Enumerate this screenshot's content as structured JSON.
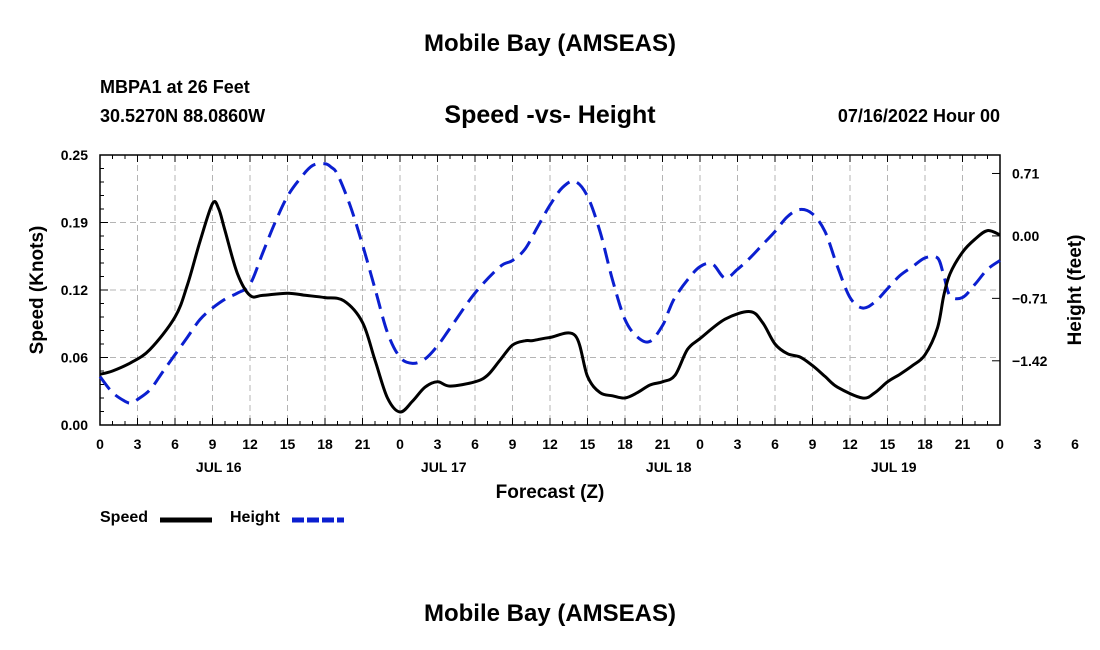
{
  "chart_data": {
    "type": "line",
    "title": "Mobile Bay (AMSEAS)",
    "footer_title": "Mobile Bay (AMSEAS)",
    "station": "MBPA1 at 26 Feet",
    "coordinates": "30.5270N  88.0860W",
    "subtitle": "Speed -vs- Height",
    "date_label": "07/16/2022 Hour 00",
    "xlabel": "Forecast (Z)",
    "ylabel_left": "Speed (Knots)",
    "ylabel_right": "Height (feet)",
    "x_range_hours": [
      0,
      72
    ],
    "hour_ticks": [
      "0",
      "3",
      "6",
      "9",
      "12",
      "15",
      "18",
      "21",
      "0",
      "3",
      "6",
      "9",
      "12",
      "15",
      "18",
      "21",
      "0",
      "3",
      "6",
      "9",
      "12",
      "15",
      "18",
      "21",
      "0",
      "3",
      "6",
      "9",
      "12",
      "15",
      "18",
      "21",
      "0"
    ],
    "day_labels": [
      {
        "label": "JUL 16",
        "hour": 9.5
      },
      {
        "label": "JUL 17",
        "hour": 27.5
      },
      {
        "label": "JUL 18",
        "hour": 45.5
      },
      {
        "label": "JUL 19",
        "hour": 63.5
      }
    ],
    "ylim_left": [
      0,
      0.25
    ],
    "yticks_left": [
      "0.25",
      "0.19",
      "0.12",
      "0.06",
      "0.00"
    ],
    "yticks_left_values": [
      0.25,
      0.1875,
      0.125,
      0.0625,
      0
    ],
    "ylim_right": [
      -2.15,
      0.92
    ],
    "yticks_right": [
      "0.71",
      "0.00",
      "−0.71",
      "−1.42"
    ],
    "yticks_right_values": [
      0.71,
      0,
      -0.71,
      -1.42
    ],
    "colors": {
      "speed": "#000000",
      "height": "#0b1fd0",
      "grid": "#b4b4b4"
    },
    "legend": [
      "Speed",
      "Height"
    ],
    "series": [
      {
        "name": "Speed",
        "color": "#000000",
        "dash": "solid",
        "x": [
          0,
          1,
          2.5,
          4,
          6,
          7,
          8,
          9,
          9.5,
          10,
          11,
          12,
          13,
          15,
          16.5,
          18,
          19.5,
          21,
          22,
          23,
          24,
          25,
          26,
          27,
          28,
          30,
          31,
          32,
          33,
          34,
          34.5,
          35,
          36,
          38,
          39,
          40,
          41,
          42,
          43,
          44,
          45,
          46,
          47,
          48,
          50,
          52,
          53,
          54,
          55,
          56,
          57,
          58,
          59,
          61,
          62,
          63,
          64,
          65,
          66,
          67,
          67.5,
          68,
          69,
          70,
          71,
          72
        ],
        "values": [
          0.047,
          0.05,
          0.058,
          0.07,
          0.1,
          0.13,
          0.17,
          0.205,
          0.2,
          0.18,
          0.14,
          0.12,
          0.12,
          0.122,
          0.12,
          0.118,
          0.115,
          0.095,
          0.06,
          0.025,
          0.012,
          0.022,
          0.035,
          0.04,
          0.036,
          0.04,
          0.046,
          0.06,
          0.074,
          0.078,
          0.078,
          0.079,
          0.081,
          0.083,
          0.045,
          0.03,
          0.027,
          0.025,
          0.03,
          0.037,
          0.04,
          0.046,
          0.07,
          0.08,
          0.098,
          0.105,
          0.095,
          0.075,
          0.066,
          0.063,
          0.055,
          0.045,
          0.035,
          0.025,
          0.03,
          0.04,
          0.047,
          0.055,
          0.065,
          0.09,
          0.12,
          0.14,
          0.16,
          0.172,
          0.18,
          0.176
        ]
      },
      {
        "name": "Height",
        "color": "#0b1fd0",
        "dash": "dashed",
        "x": [
          0,
          1,
          2,
          2.5,
          3,
          4,
          5,
          6,
          7,
          8,
          9,
          10,
          11,
          12,
          13,
          14,
          15,
          16,
          17,
          18,
          18.5,
          19,
          20,
          21,
          22,
          23,
          24,
          25,
          26,
          27,
          28,
          30,
          32,
          33,
          34,
          35,
          36,
          37,
          38,
          39,
          40,
          41,
          42,
          43,
          44,
          45,
          45.5,
          46,
          47,
          48,
          49,
          50,
          51,
          52,
          53,
          54,
          55,
          56,
          57,
          58,
          59,
          60,
          61,
          62,
          63,
          64,
          65,
          66,
          67,
          67.5,
          68,
          69,
          70,
          71,
          72
        ],
        "values": [
          -1.6,
          -1.78,
          -1.88,
          -1.9,
          -1.86,
          -1.75,
          -1.55,
          -1.35,
          -1.15,
          -0.95,
          -0.82,
          -0.72,
          -0.65,
          -0.55,
          -0.2,
          0.15,
          0.45,
          0.65,
          0.8,
          0.82,
          0.78,
          0.7,
          0.35,
          -0.1,
          -0.6,
          -1.1,
          -1.38,
          -1.45,
          -1.4,
          -1.25,
          -1.05,
          -0.65,
          -0.35,
          -0.28,
          -0.15,
          0.1,
          0.35,
          0.55,
          0.62,
          0.45,
          0.05,
          -0.5,
          -0.95,
          -1.15,
          -1.2,
          -1.02,
          -0.85,
          -0.7,
          -0.5,
          -0.35,
          -0.32,
          -0.48,
          -0.38,
          -0.25,
          -0.1,
          0.05,
          0.22,
          0.3,
          0.25,
          0.05,
          -0.35,
          -0.7,
          -0.82,
          -0.75,
          -0.6,
          -0.45,
          -0.35,
          -0.25,
          -0.25,
          -0.45,
          -0.68,
          -0.7,
          -0.55,
          -0.38,
          -0.28
        ]
      }
    ]
  }
}
